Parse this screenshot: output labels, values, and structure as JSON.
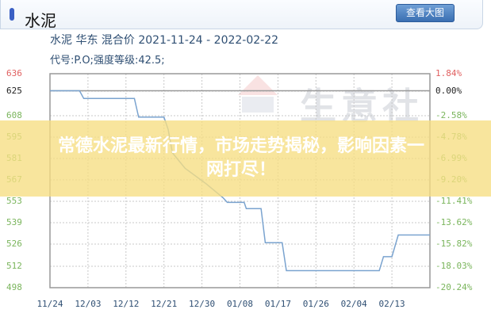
{
  "header": {
    "title": "水泥",
    "view_large_button": "查看大图"
  },
  "subtitle": {
    "line1": "水泥 华东 混合价 2021-11-24 - 2022-02-22",
    "line2": "代号:P.O;强度等级:42.5;"
  },
  "watermark": "生意社",
  "banner": {
    "text": "常德水泥最新行情，市场走势揭秘，影响因素一网打尽！"
  },
  "colors": {
    "line": "#7aa3cf",
    "left_top_tick": "#e06060",
    "left_ref_tick": "#222222",
    "left_ticks": "#7ab55c",
    "right_ticks": "#7ab55c",
    "right_top_tick": "#e06060"
  },
  "chart_data": {
    "type": "line",
    "grid": true,
    "x_tick_labels": [
      "11/24",
      "12/03",
      "12/12",
      "12/21",
      "12/30",
      "01/08",
      "01/17",
      "01/26",
      "02/04",
      "02/13"
    ],
    "x_range_days": [
      0,
      90
    ],
    "ylim": [
      498,
      636
    ],
    "y_ticks_left": [
      "636",
      "625",
      "608",
      "595",
      "581",
      "567",
      "553",
      "539",
      "526",
      "512",
      "498"
    ],
    "y_ticks_right": [
      "1.84%",
      "0.00%",
      "-2.58%",
      "-4.78%",
      "-6.99%",
      "-9.20%",
      "-11.41%",
      "-13.62%",
      "-15.82%",
      "-18.03%",
      "-20.24%"
    ],
    "series": [
      {
        "points": [
          [
            0,
            625
          ],
          [
            7,
            625
          ],
          [
            8,
            620
          ],
          [
            20,
            620
          ],
          [
            21,
            608
          ],
          [
            27,
            608
          ],
          [
            28,
            600
          ],
          [
            29,
            585
          ],
          [
            32,
            575
          ],
          [
            37,
            565
          ],
          [
            41,
            556
          ],
          [
            42,
            553
          ],
          [
            46,
            553
          ],
          [
            46.5,
            549
          ],
          [
            50,
            549
          ],
          [
            51,
            527
          ],
          [
            55,
            527
          ],
          [
            56,
            509
          ],
          [
            78,
            509
          ],
          [
            79,
            518
          ],
          [
            81,
            518
          ],
          [
            82.5,
            532
          ],
          [
            90,
            532
          ]
        ]
      }
    ]
  }
}
